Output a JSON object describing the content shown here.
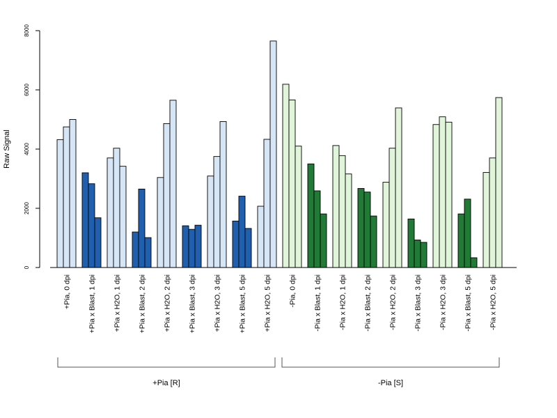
{
  "chart_data": {
    "type": "bar",
    "ylabel": "Raw Signal",
    "ylim": [
      0,
      8000
    ],
    "yticks": [
      0,
      2000,
      4000,
      6000,
      8000
    ],
    "grid": false,
    "bars_per_group": 3,
    "colors": {
      "pos_light": "#d6e6f7",
      "pos_dark": "#1f5fae",
      "neg_light": "#e1f5da",
      "neg_dark": "#217a36",
      "bar_border": "#000000"
    },
    "groups": [
      {
        "label": "+Pia, 0 dpi",
        "tone": "pos_light",
        "values": [
          4320,
          4750,
          5000
        ]
      },
      {
        "label": "+Pia x Blast, 1 dpi",
        "tone": "pos_dark",
        "values": [
          3200,
          2830,
          1680
        ]
      },
      {
        "label": "+Pia x H2O, 1 dpi",
        "tone": "pos_light",
        "values": [
          3700,
          4030,
          3420
        ]
      },
      {
        "label": "+Pia x Blast, 2 dpi",
        "tone": "pos_dark",
        "values": [
          1200,
          2650,
          1010
        ]
      },
      {
        "label": "+Pia x H2O, 2 dpi",
        "tone": "pos_light",
        "values": [
          3040,
          4860,
          5650
        ]
      },
      {
        "label": "+Pia x Blast, 3 dpi",
        "tone": "pos_dark",
        "values": [
          1410,
          1290,
          1430
        ]
      },
      {
        "label": "+Pia x H2O, 3 dpi",
        "tone": "pos_light",
        "values": [
          3090,
          3750,
          4930
        ]
      },
      {
        "label": "+Pia x Blast, 5 dpi",
        "tone": "pos_dark",
        "values": [
          1570,
          2410,
          1320
        ]
      },
      {
        "label": "+Pia x H2O, 5 dpi",
        "tone": "pos_light",
        "values": [
          2070,
          4330,
          7650
        ]
      },
      {
        "label": "-Pia, 0 dpi",
        "tone": "neg_light",
        "values": [
          6190,
          5660,
          4100
        ]
      },
      {
        "label": "-Pia x Blast, 1 dpi",
        "tone": "neg_dark",
        "values": [
          3500,
          2590,
          1810
        ]
      },
      {
        "label": "-Pia x H2O, 1 dpi",
        "tone": "neg_light",
        "values": [
          4120,
          3780,
          3160
        ]
      },
      {
        "label": "-Pia x Blast, 2 dpi",
        "tone": "neg_dark",
        "values": [
          2670,
          2550,
          1740
        ]
      },
      {
        "label": "-Pia x H2O, 2 dpi",
        "tone": "neg_light",
        "values": [
          2880,
          4030,
          5390
        ]
      },
      {
        "label": "-Pia x Blast, 3 dpi",
        "tone": "neg_dark",
        "values": [
          1640,
          930,
          850
        ]
      },
      {
        "label": "-Pia x H2O, 3 dpi",
        "tone": "neg_light",
        "values": [
          4830,
          5090,
          4910
        ]
      },
      {
        "label": "-Pia x Blast, 5 dpi",
        "tone": "neg_dark",
        "values": [
          1810,
          2310,
          330
        ]
      },
      {
        "label": "-Pia x H2O, 5 dpi",
        "tone": "neg_light",
        "values": [
          3210,
          3700,
          5740
        ]
      }
    ],
    "brackets": [
      {
        "label": "+Pia [R]",
        "from_group": 0,
        "to_group": 8
      },
      {
        "label": "-Pia [S]",
        "from_group": 9,
        "to_group": 17
      }
    ]
  }
}
